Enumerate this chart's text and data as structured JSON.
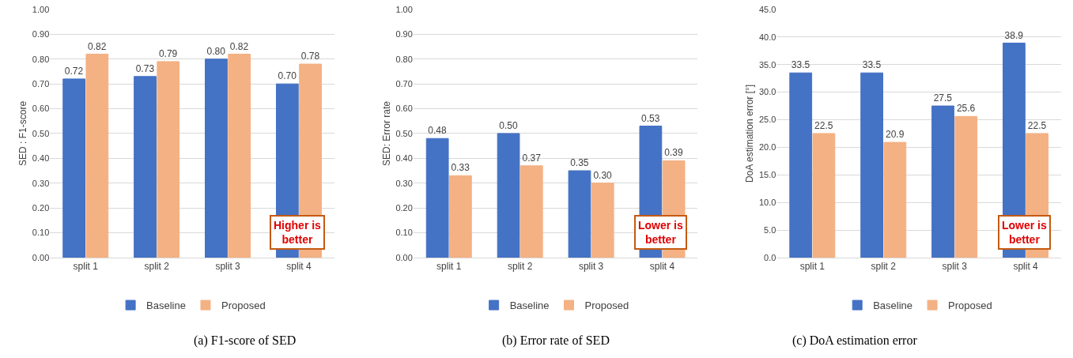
{
  "chart_data": [
    {
      "type": "bar",
      "title": "(a) F1-score of SED",
      "ylabel": "SED : F1-score",
      "categories": [
        "split 1",
        "split 2",
        "split 3",
        "split 4"
      ],
      "series": [
        {
          "name": "Baseline",
          "color": "#4472c4",
          "values": [
            0.72,
            0.73,
            0.8,
            0.7
          ],
          "value_labels": [
            "0.72",
            "0.73",
            "0.80",
            "0.70"
          ]
        },
        {
          "name": "Proposed",
          "color": "#f4b183",
          "values": [
            0.82,
            0.79,
            0.82,
            0.78
          ],
          "value_labels": [
            "0.82",
            "0.79",
            "0.82",
            "0.78"
          ]
        }
      ],
      "ylim": [
        0,
        1
      ],
      "yticks": [
        {
          "value": 0,
          "label": "0.00"
        },
        {
          "value": 0.1,
          "label": "0.10"
        },
        {
          "value": 0.2,
          "label": "0.20"
        },
        {
          "value": 0.3,
          "label": "0.30"
        },
        {
          "value": 0.4,
          "label": "0.40"
        },
        {
          "value": 0.5,
          "label": "0.50"
        },
        {
          "value": 0.6,
          "label": "0.60"
        },
        {
          "value": 0.7,
          "label": "0.70"
        },
        {
          "value": 0.8,
          "label": "0.80"
        },
        {
          "value": 0.9,
          "label": "0.90"
        },
        {
          "value": 1,
          "label": "1.00"
        }
      ],
      "grid": "y",
      "legend": "bottom",
      "annotations": [
        "Higher is better"
      ]
    },
    {
      "type": "bar",
      "title": "(b) Error rate of SED",
      "ylabel": "SED: Error rate",
      "categories": [
        "split 1",
        "split 2",
        "split 3",
        "split 4"
      ],
      "series": [
        {
          "name": "Baseline",
          "color": "#4472c4",
          "values": [
            0.48,
            0.5,
            0.35,
            0.53
          ],
          "value_labels": [
            "0.48",
            "0.50",
            "0.35",
            "0.53"
          ]
        },
        {
          "name": "Proposed",
          "color": "#f4b183",
          "values": [
            0.33,
            0.37,
            0.3,
            0.39
          ],
          "value_labels": [
            "0.33",
            "0.37",
            "0.30",
            "0.39"
          ]
        }
      ],
      "ylim": [
        0,
        1
      ],
      "yticks": [
        {
          "value": 0,
          "label": "0.00"
        },
        {
          "value": 0.1,
          "label": "0.10"
        },
        {
          "value": 0.2,
          "label": "0.20"
        },
        {
          "value": 0.3,
          "label": "0.30"
        },
        {
          "value": 0.4,
          "label": "0.40"
        },
        {
          "value": 0.5,
          "label": "0.50"
        },
        {
          "value": 0.6,
          "label": "0.60"
        },
        {
          "value": 0.7,
          "label": "0.70"
        },
        {
          "value": 0.8,
          "label": "0.80"
        },
        {
          "value": 0.9,
          "label": "0.90"
        },
        {
          "value": 1,
          "label": "1.00"
        }
      ],
      "grid": "y",
      "legend": "bottom",
      "annotations": [
        "Lower is better"
      ]
    },
    {
      "type": "bar",
      "title": "(c) DoA estimation error",
      "ylabel": "DoA estimation error [°]",
      "categories": [
        "split 1",
        "split 2",
        "split 3",
        "split 4"
      ],
      "series": [
        {
          "name": "Baseline",
          "color": "#4472c4",
          "values": [
            33.5,
            33.5,
            27.5,
            38.9
          ],
          "value_labels": [
            "33.5",
            "33.5",
            "27.5",
            "38.9"
          ]
        },
        {
          "name": "Proposed",
          "color": "#f4b183",
          "values": [
            22.5,
            20.9,
            25.6,
            22.5
          ],
          "value_labels": [
            "22.5",
            "20.9",
            "25.6",
            "22.5"
          ]
        }
      ],
      "ylim": [
        0,
        45
      ],
      "yticks": [
        {
          "value": 0,
          "label": "0.0"
        },
        {
          "value": 5,
          "label": "5.0"
        },
        {
          "value": 10,
          "label": "10.0"
        },
        {
          "value": 15,
          "label": "15.0"
        },
        {
          "value": 20,
          "label": "20.0"
        },
        {
          "value": 25,
          "label": "25.0"
        },
        {
          "value": 30,
          "label": "30.0"
        },
        {
          "value": 35,
          "label": "35.0"
        },
        {
          "value": 40,
          "label": "40.0"
        },
        {
          "value": 45,
          "label": "45.0"
        }
      ],
      "grid": "y",
      "legend": "bottom",
      "annotations": [
        "Lower is better"
      ]
    }
  ]
}
